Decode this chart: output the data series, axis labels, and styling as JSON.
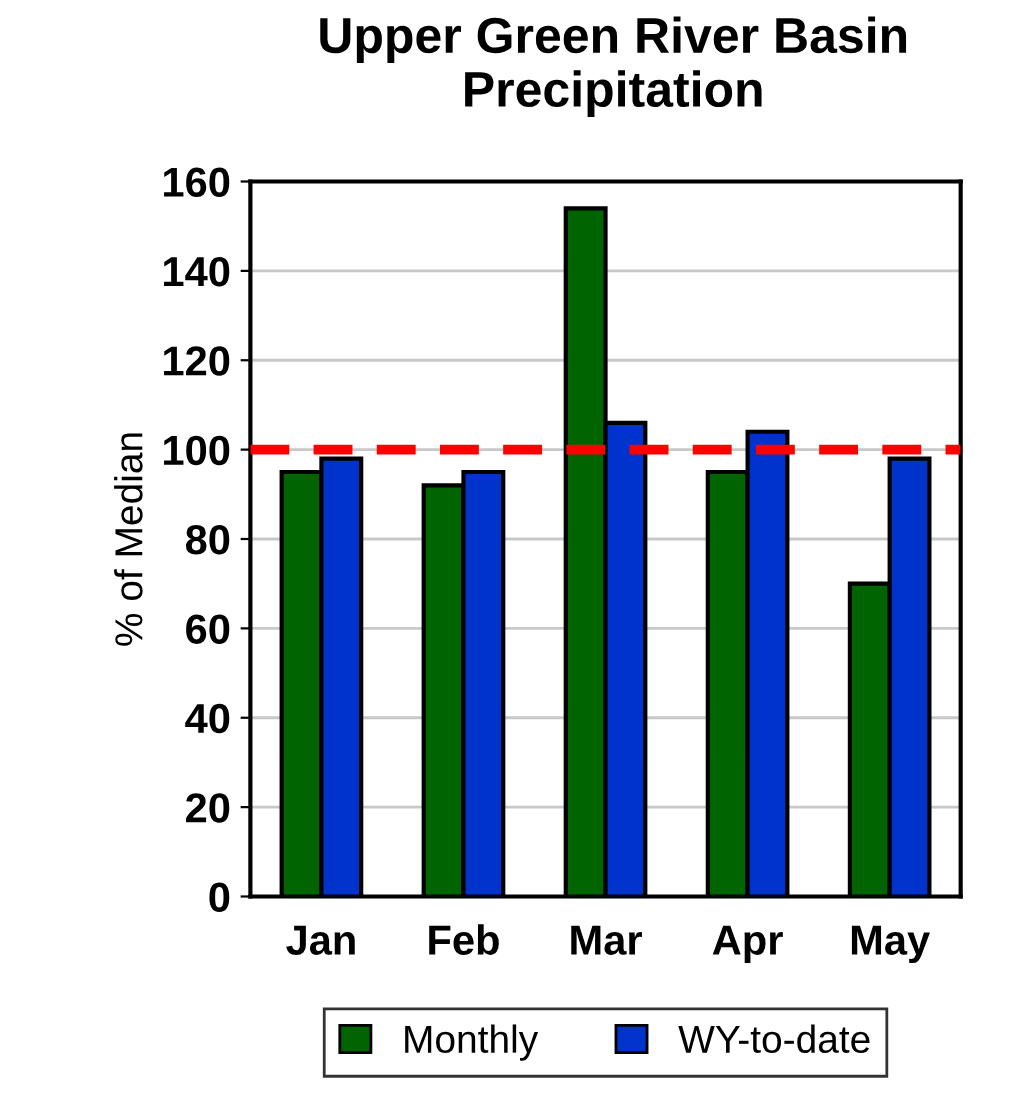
{
  "chart_data": {
    "type": "bar",
    "title": "Upper Green River Basin\nPrecipitation",
    "ylabel": "% of Median",
    "categories": [
      "Jan",
      "Feb",
      "Mar",
      "Apr",
      "May"
    ],
    "series": [
      {
        "name": "Monthly",
        "color": "#006400",
        "values": [
          95,
          92,
          154,
          95,
          70
        ]
      },
      {
        "name": "WY-to-date",
        "color": "#0033cc",
        "values": [
          98,
          95,
          106,
          104,
          98
        ]
      }
    ],
    "ylim": [
      0,
      160
    ],
    "yticks": [
      0,
      20,
      40,
      60,
      80,
      100,
      120,
      140,
      160
    ],
    "grid": "y",
    "legend": "bottom",
    "ref_lines": [
      {
        "axis": "y",
        "value": 100,
        "color": "#ff0000",
        "line_style": "dashed"
      }
    ]
  }
}
